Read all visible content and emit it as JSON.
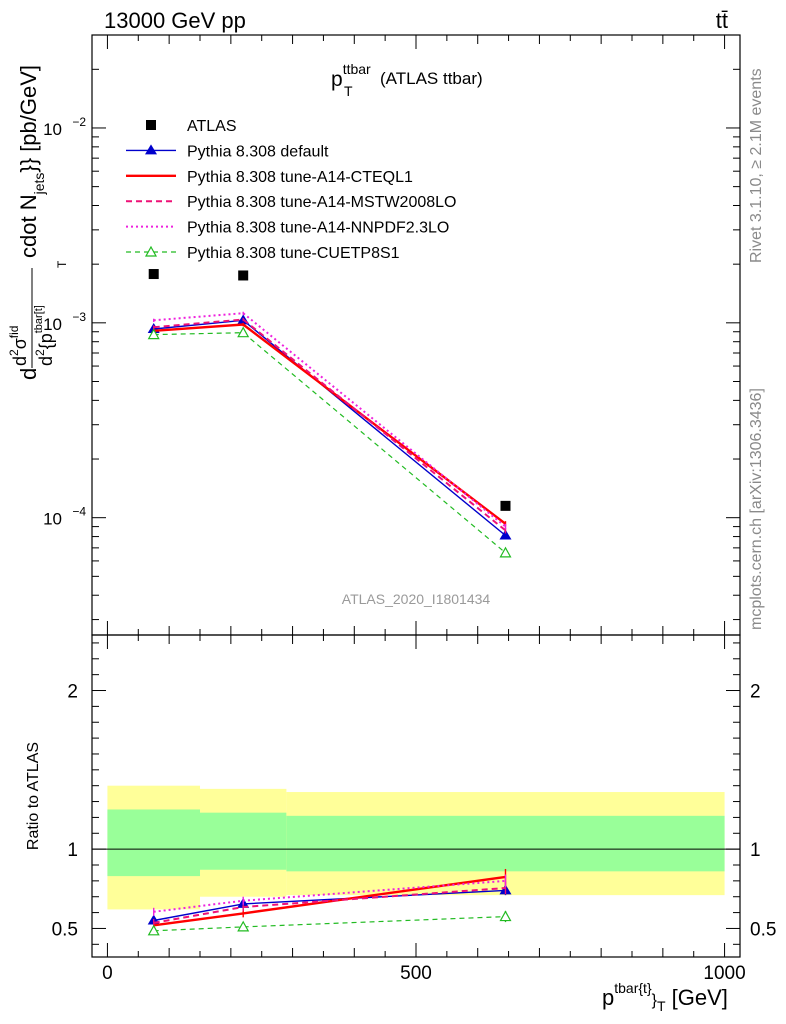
{
  "header": {
    "left": "13000 GeV pp",
    "right": "tt̄"
  },
  "side_labels": {
    "rivet": "Rivet 3.1.10, ≥ 2.1M events",
    "mcplots": "mcplots.cern.ch [arXiv:1306.3436]"
  },
  "watermark": "ATLAS_2020_I1801434",
  "plot_title": {
    "main": "p",
    "sup": "ttbar",
    "sub": "T",
    "rest": " (ATLAS ttbar)"
  },
  "colors": {
    "atlas": "#000000",
    "default": "#0000cc",
    "cteql1": "#ff0000",
    "mstw": "#ee1177",
    "nnpdf": "#ee22dd",
    "cuetp": "#22bb22",
    "band_outer": "#ffff99",
    "band_inner": "#99ff99"
  },
  "chart_data": [
    {
      "type": "line",
      "panel": "main",
      "ylabel": "d d²σ^{fid}/d²{p_T^{tbar[t]}} cdot N_{jets}} [pb/GeV]",
      "ylabel_parts": {
        "a": "d",
        "frac_num": "d",
        "frac_num_sup": "2",
        "sigma": "σ",
        "sigma_sup": "fid",
        "frac_den": "d",
        "frac_den_sup": "2",
        "frac_den_rest": "{p",
        "p_sup": "tbar[t]",
        "p_sub": "T",
        "cdot": "cdot N",
        "jets_sub": "jets",
        "close": "}} [pb/GeV]"
      },
      "yscale": "log",
      "xlim": [
        -25,
        1025
      ],
      "ylim": [
        2.5e-05,
        0.03
      ],
      "y_ticks": [
        {
          "value": 0.01,
          "base": "10",
          "exp": "−2"
        },
        {
          "value": 0.001,
          "base": "10",
          "exp": "−3"
        },
        {
          "value": 0.0001,
          "base": "10",
          "exp": "−4"
        }
      ],
      "legend_placement": "top-left",
      "series": [
        {
          "name": "ATLAS",
          "key": "atlas",
          "x": [
            75,
            220,
            645
          ],
          "y": [
            0.00178,
            0.00175,
            0.000115
          ],
          "yerr": [
            0,
            0,
            0
          ],
          "style": "marker-only",
          "marker": "square"
        },
        {
          "name": "Pythia 8.308 default",
          "key": "default",
          "x": [
            75,
            220,
            645
          ],
          "y": [
            0.00093,
            0.00103,
            8.1e-05
          ],
          "yerr": [
            2e-05,
            2e-05,
            3e-06
          ],
          "style": "solid-thin",
          "marker": "triangle"
        },
        {
          "name": "Pythia 8.308 tune-A14-CTEQL1",
          "key": "cteql1",
          "x": [
            75,
            220,
            645
          ],
          "y": [
            0.00091,
            0.00098,
            9.3e-05
          ],
          "yerr": [
            2e-05,
            2e-05,
            3e-06
          ],
          "style": "solid-thick",
          "marker": "none"
        },
        {
          "name": "Pythia 8.308 tune-A14-MSTW2008LO",
          "key": "mstw",
          "x": [
            75,
            220,
            645
          ],
          "y": [
            0.00095,
            0.00104,
            8.6e-05
          ],
          "yerr": [
            2e-05,
            2e-05,
            3e-06
          ],
          "style": "dashed",
          "marker": "none"
        },
        {
          "name": "Pythia 8.308 tune-A14-NNPDF2.3LO",
          "key": "nnpdf",
          "x": [
            75,
            220,
            645
          ],
          "y": [
            0.00103,
            0.00112,
            9e-05
          ],
          "yerr": [
            2e-05,
            2e-05,
            3e-06
          ],
          "style": "dotted",
          "marker": "none"
        },
        {
          "name": "Pythia 8.308 tune-CUETP8S1",
          "key": "cuetp",
          "x": [
            75,
            220,
            645
          ],
          "y": [
            0.00087,
            0.00089,
            6.6e-05
          ],
          "yerr": [
            2e-05,
            2e-05,
            3e-06
          ],
          "style": "dashed-thin",
          "marker": "open-triangle"
        }
      ]
    },
    {
      "type": "line",
      "panel": "ratio",
      "ylabel": "Ratio to ATLAS",
      "xlabel": "p_T^{tbar{t}} [GeV]",
      "xlabel_parts": {
        "p": "p",
        "sup": "tbar{t}",
        "close": "}",
        "sub": "T",
        "unit": " [GeV]"
      },
      "xlim": [
        -25,
        1025
      ],
      "ylim": [
        0.32,
        2.35
      ],
      "x_ticks": [
        0,
        500,
        1000
      ],
      "y_ticks": [
        0.5,
        1,
        2
      ],
      "reference_line": 1,
      "bands": {
        "bin_edges": [
          0,
          150,
          290,
          1000
        ],
        "outer_lo": [
          0.62,
          0.7,
          0.71
        ],
        "outer_hi": [
          1.4,
          1.38,
          1.36
        ],
        "inner_lo": [
          0.83,
          0.87,
          0.86
        ],
        "inner_hi": [
          1.25,
          1.23,
          1.21
        ]
      },
      "series": [
        {
          "name": "Pythia 8.308 default",
          "key": "default",
          "x": [
            75,
            220,
            645
          ],
          "y": [
            0.55,
            0.655,
            0.74
          ],
          "yerr": [
            0.025,
            0.025,
            0.03
          ]
        },
        {
          "name": "Pythia 8.308 tune-A14-CTEQL1",
          "key": "cteql1",
          "x": [
            75,
            220,
            645
          ],
          "y": [
            0.52,
            0.595,
            0.825
          ],
          "yerr": [
            0.025,
            0.025,
            0.05
          ]
        },
        {
          "name": "Pythia 8.308 tune-A14-MSTW2008LO",
          "key": "mstw",
          "x": [
            75,
            220,
            645
          ],
          "y": [
            0.535,
            0.635,
            0.755
          ],
          "yerr": [
            0.025,
            0.025,
            0.04
          ]
        },
        {
          "name": "Pythia 8.308 tune-A14-NNPDF2.3LO",
          "key": "nnpdf",
          "x": [
            75,
            220,
            645
          ],
          "y": [
            0.605,
            0.675,
            0.8
          ],
          "yerr": [
            0.025,
            0.025,
            0.04
          ]
        },
        {
          "name": "Pythia 8.308 tune-CUETP8S1",
          "key": "cuetp",
          "x": [
            75,
            220,
            645
          ],
          "y": [
            0.485,
            0.51,
            0.575
          ],
          "yerr": [
            0.02,
            0.02,
            0.035
          ]
        }
      ]
    }
  ]
}
